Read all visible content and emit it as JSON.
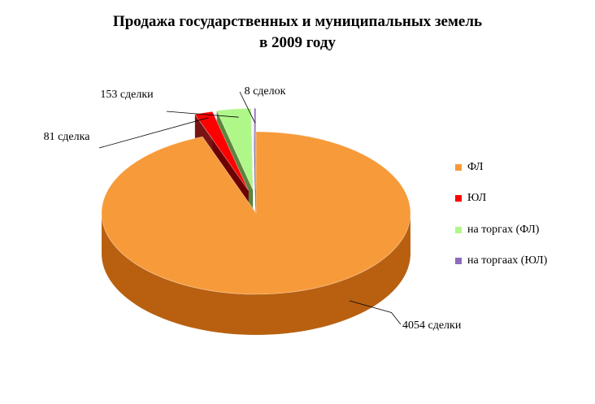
{
  "chart_data": {
    "type": "pie",
    "title": "Продажа государственных  и муниципальных  земель",
    "subtitle": "в 2009 году",
    "categories": [
      "ФЛ",
      "ЮЛ",
      "на торгах (ФЛ)",
      "на торгаах (ЮЛ)"
    ],
    "values": [
      4054,
      81,
      153,
      8
    ],
    "data_labels": [
      "4054 сделки",
      "81 сделка",
      "153 сделки",
      "8 сделок"
    ],
    "colors": [
      "#f79a3a",
      "#ff0000",
      "#b0f78a",
      "#8e6bbd"
    ],
    "side_colors": [
      "#b86010",
      "#6e0000",
      "#4f7a2a",
      "#4a3270"
    ],
    "exploded": [
      false,
      true,
      true,
      true
    ],
    "legend_position": "right",
    "three_d": true
  }
}
